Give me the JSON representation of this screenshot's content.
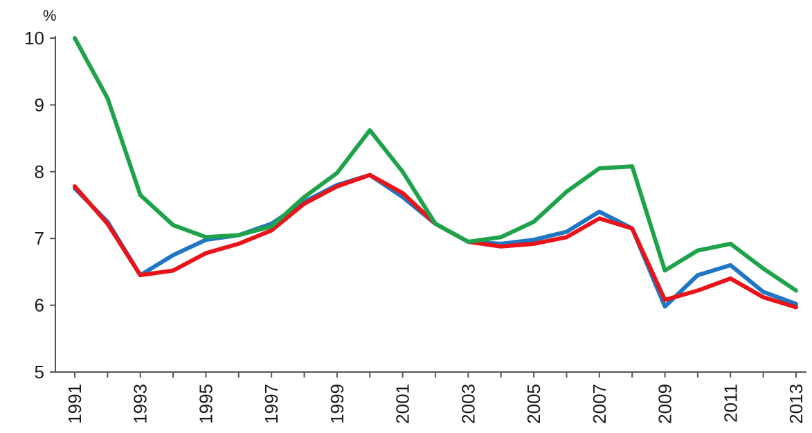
{
  "chart_data": {
    "type": "line",
    "unit_label": "%",
    "x": [
      "1991",
      "1992",
      "1993",
      "1994",
      "1995",
      "1996",
      "1997",
      "1998",
      "1999",
      "2000",
      "2001",
      "2002",
      "2003",
      "2004",
      "2005",
      "2006",
      "2007",
      "2008",
      "2009",
      "2010",
      "2011",
      "2012",
      "2013"
    ],
    "x_tick_labels": [
      "1991",
      "1993",
      "1995",
      "1997",
      "1999",
      "2001",
      "2003",
      "2005",
      "2007",
      "2009",
      "2011",
      "2013"
    ],
    "y_tick_labels": [
      "5",
      "6",
      "7",
      "8",
      "9",
      "10"
    ],
    "ylim": [
      5,
      10
    ],
    "grid": false,
    "series": [
      {
        "color": "#1f77c4",
        "values": [
          7.75,
          7.25,
          6.45,
          6.75,
          6.98,
          7.05,
          7.22,
          7.55,
          7.8,
          7.95,
          7.62,
          7.22,
          6.95,
          6.92,
          6.98,
          7.1,
          7.4,
          7.15,
          5.98,
          6.45,
          6.6,
          6.2,
          6.02
        ]
      },
      {
        "color": "#e8141a",
        "values": [
          7.78,
          7.22,
          6.45,
          6.52,
          6.78,
          6.92,
          7.12,
          7.52,
          7.78,
          7.95,
          7.68,
          7.22,
          6.95,
          6.88,
          6.92,
          7.02,
          7.3,
          7.15,
          6.08,
          6.22,
          6.4,
          6.12,
          5.97
        ]
      },
      {
        "color": "#1fa34a",
        "values": [
          10.0,
          9.1,
          7.65,
          7.2,
          7.02,
          7.05,
          7.18,
          7.62,
          7.98,
          8.62,
          8.0,
          7.22,
          6.95,
          7.02,
          7.25,
          7.7,
          8.05,
          8.08,
          6.52,
          6.82,
          6.92,
          6.55,
          6.22
        ]
      }
    ]
  }
}
